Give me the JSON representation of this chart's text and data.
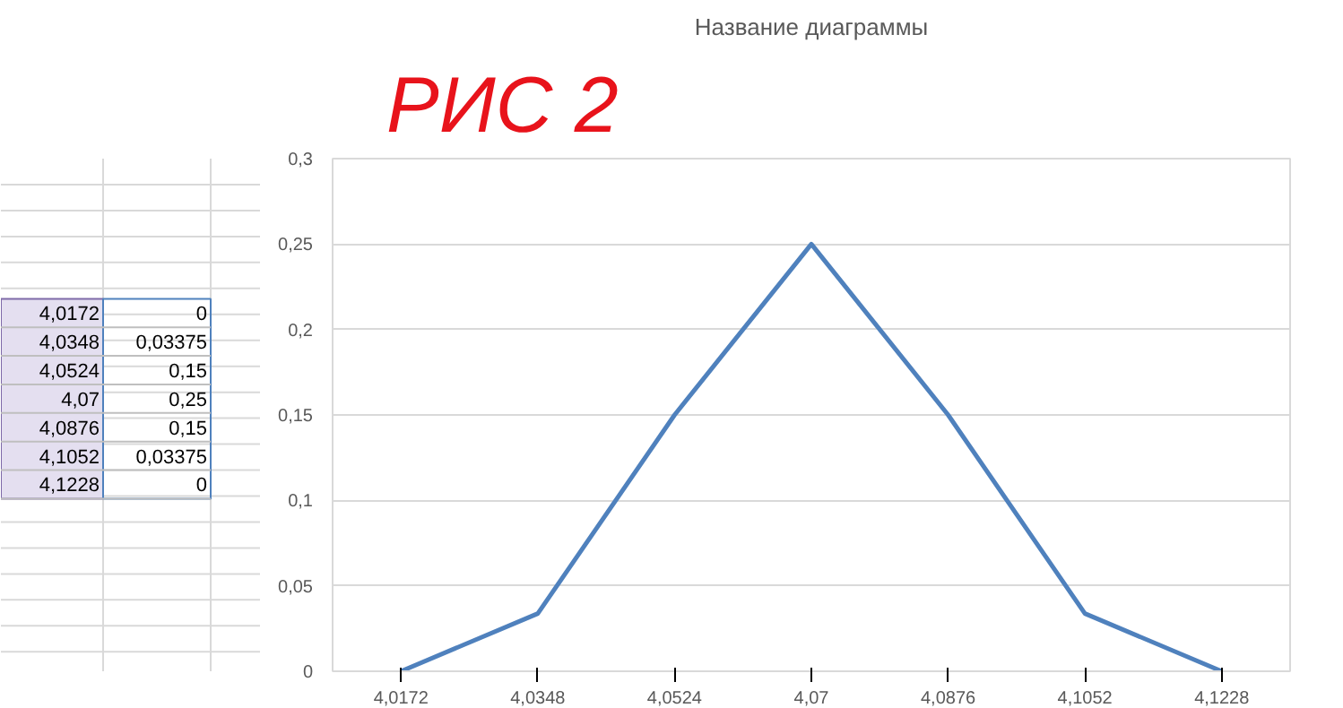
{
  "chart_data": {
    "type": "line",
    "title": "Название диаграммы",
    "categories": [
      "4,0172",
      "4,0348",
      "4,0524",
      "4,07",
      "4,0876",
      "4,1052",
      "4,1228"
    ],
    "series": [
      {
        "color": "#4f81bd",
        "values": [
          0,
          0.03375,
          0.15,
          0.25,
          0.15,
          0.03375,
          0
        ]
      }
    ],
    "value_labels": [
      "0",
      "0,03375",
      "0,15",
      "0,25",
      "0,15",
      "0,03375",
      "0"
    ],
    "ylim": [
      0,
      0.3
    ],
    "yticks": [
      0,
      {
        "value": 0.05,
        "label": "0,05"
      },
      {
        "value": 0.1,
        "label": "0,1"
      },
      {
        "value": 0.15,
        "label": "0,15"
      },
      {
        "value": 0.2,
        "label": "0,2"
      },
      {
        "value": 0.25,
        "label": "0,25"
      },
      {
        "value": 0.3,
        "label": "0,3"
      }
    ],
    "grid": "y",
    "marker": "none",
    "line_style": "solid",
    "annotations": [
      "РИС 2"
    ]
  }
}
